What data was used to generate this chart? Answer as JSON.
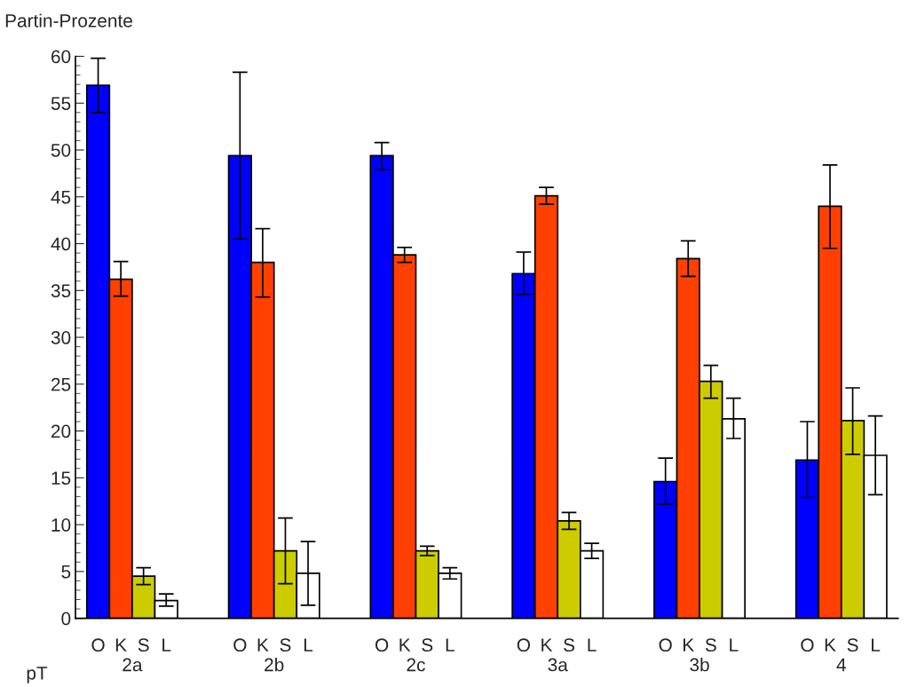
{
  "chart_data": {
    "type": "bar",
    "ylabel": "Partin-Prozente",
    "xlabel": "pT",
    "categories": [
      "2a",
      "2b",
      "2c",
      "3a",
      "3b",
      "4"
    ],
    "series": [
      {
        "name": "O",
        "color": "#0000ff",
        "values": [
          56.9,
          49.4,
          49.4,
          36.8,
          14.6,
          16.9
        ],
        "errors": [
          [
            54.0,
            59.8
          ],
          [
            40.5,
            58.3
          ],
          [
            47.9,
            50.8
          ],
          [
            34.6,
            39.1
          ],
          [
            12.2,
            17.1
          ],
          [
            12.9,
            21.0
          ]
        ]
      },
      {
        "name": "K",
        "color": "#ff4000",
        "values": [
          36.2,
          38.0,
          38.8,
          45.1,
          38.4,
          44.0
        ],
        "errors": [
          [
            34.4,
            38.1
          ],
          [
            34.3,
            41.6
          ],
          [
            38.0,
            39.6
          ],
          [
            44.2,
            46.0
          ],
          [
            36.5,
            40.3
          ],
          [
            39.5,
            48.4
          ]
        ]
      },
      {
        "name": "S",
        "color": "#cccc00",
        "values": [
          4.5,
          7.2,
          7.2,
          10.4,
          25.3,
          21.1
        ],
        "errors": [
          [
            3.6,
            5.4
          ],
          [
            3.7,
            10.7
          ],
          [
            6.7,
            7.7
          ],
          [
            9.5,
            11.3
          ],
          [
            23.5,
            27.0
          ],
          [
            17.5,
            24.6
          ]
        ]
      },
      {
        "name": "L",
        "color": "#ffffff",
        "values": [
          1.9,
          4.8,
          4.8,
          7.2,
          21.3,
          17.4
        ],
        "errors": [
          [
            1.3,
            2.6
          ],
          [
            1.4,
            8.2
          ],
          [
            4.2,
            5.4
          ],
          [
            6.4,
            8.0
          ],
          [
            19.2,
            23.5
          ],
          [
            13.2,
            21.6
          ]
        ]
      }
    ],
    "ylim": [
      0,
      60
    ],
    "yticks": [
      0,
      5,
      10,
      15,
      20,
      25,
      30,
      35,
      40,
      45,
      50,
      55,
      60
    ],
    "grid": false,
    "legend": false
  }
}
